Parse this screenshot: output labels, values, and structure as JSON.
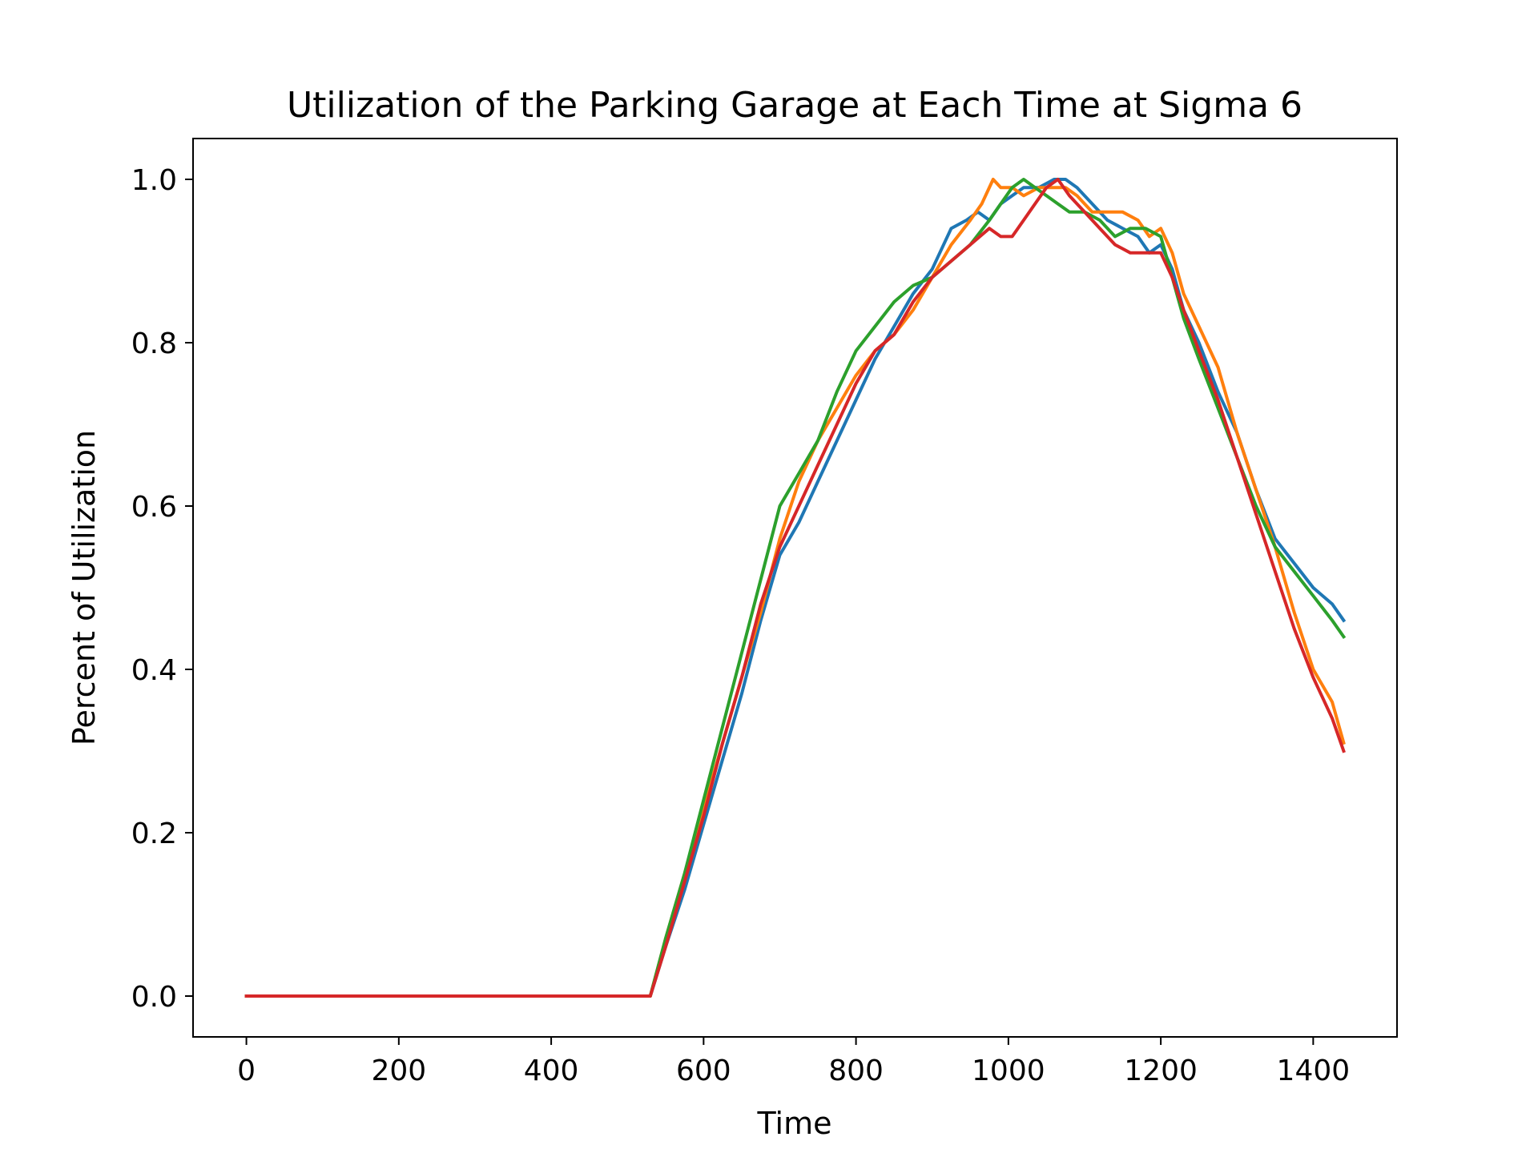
{
  "chart_data": {
    "type": "line",
    "title": "Utilization of the Parking Garage at Each Time at Sigma 6",
    "xlabel": "Time",
    "ylabel": "Percent of Utilization",
    "xlim": [
      -70,
      1510
    ],
    "ylim": [
      -0.05,
      1.05
    ],
    "xticks": [
      0,
      200,
      400,
      600,
      800,
      1000,
      1200,
      1400
    ],
    "xtick_labels": [
      "0",
      "200",
      "400",
      "600",
      "800",
      "1000",
      "1200",
      "1400"
    ],
    "yticks": [
      0.0,
      0.2,
      0.4,
      0.6,
      0.8,
      1.0
    ],
    "ytick_labels": [
      "0.0",
      "0.2",
      "0.4",
      "0.6",
      "0.8",
      "1.0"
    ],
    "grid": false,
    "legend": "none",
    "series": [
      {
        "color": "#1f77b4",
        "x": [
          0,
          530,
          550,
          575,
          600,
          625,
          650,
          675,
          700,
          725,
          750,
          775,
          800,
          825,
          850,
          875,
          900,
          925,
          945,
          960,
          975,
          990,
          1005,
          1020,
          1040,
          1060,
          1075,
          1090,
          1110,
          1130,
          1150,
          1170,
          1185,
          1200,
          1215,
          1230,
          1250,
          1275,
          1300,
          1325,
          1350,
          1375,
          1400,
          1425,
          1440
        ],
        "y": [
          0,
          0,
          0.06,
          0.13,
          0.21,
          0.29,
          0.37,
          0.46,
          0.54,
          0.58,
          0.63,
          0.68,
          0.73,
          0.78,
          0.82,
          0.86,
          0.89,
          0.94,
          0.95,
          0.96,
          0.95,
          0.97,
          0.98,
          0.99,
          0.99,
          1.0,
          1.0,
          0.99,
          0.97,
          0.95,
          0.94,
          0.93,
          0.91,
          0.92,
          0.89,
          0.84,
          0.8,
          0.74,
          0.69,
          0.62,
          0.56,
          0.53,
          0.5,
          0.48,
          0.46
        ]
      },
      {
        "color": "#ff7f0e",
        "x": [
          0,
          530,
          550,
          575,
          600,
          625,
          650,
          675,
          700,
          725,
          750,
          775,
          800,
          825,
          850,
          875,
          900,
          925,
          950,
          965,
          980,
          990,
          1005,
          1020,
          1040,
          1060,
          1075,
          1090,
          1110,
          1130,
          1150,
          1170,
          1185,
          1200,
          1215,
          1230,
          1250,
          1275,
          1300,
          1325,
          1350,
          1375,
          1400,
          1425,
          1440
        ],
        "y": [
          0,
          0,
          0.07,
          0.15,
          0.23,
          0.31,
          0.39,
          0.47,
          0.56,
          0.63,
          0.68,
          0.72,
          0.76,
          0.79,
          0.81,
          0.84,
          0.88,
          0.92,
          0.95,
          0.97,
          1.0,
          0.99,
          0.99,
          0.98,
          0.99,
          0.99,
          0.99,
          0.98,
          0.96,
          0.96,
          0.96,
          0.95,
          0.93,
          0.94,
          0.91,
          0.86,
          0.82,
          0.77,
          0.69,
          0.62,
          0.55,
          0.47,
          0.4,
          0.36,
          0.31
        ]
      },
      {
        "color": "#2ca02c",
        "x": [
          0,
          530,
          550,
          575,
          600,
          625,
          650,
          675,
          700,
          725,
          750,
          775,
          800,
          825,
          850,
          875,
          900,
          925,
          950,
          975,
          990,
          1005,
          1020,
          1035,
          1050,
          1065,
          1080,
          1100,
          1120,
          1140,
          1160,
          1180,
          1200,
          1215,
          1230,
          1250,
          1275,
          1300,
          1325,
          1350,
          1375,
          1400,
          1425,
          1440
        ],
        "y": [
          0,
          0,
          0.07,
          0.15,
          0.24,
          0.33,
          0.42,
          0.51,
          0.6,
          0.64,
          0.68,
          0.74,
          0.79,
          0.82,
          0.85,
          0.87,
          0.88,
          0.9,
          0.92,
          0.95,
          0.97,
          0.99,
          1.0,
          0.99,
          0.98,
          0.97,
          0.96,
          0.96,
          0.95,
          0.93,
          0.94,
          0.94,
          0.93,
          0.88,
          0.83,
          0.78,
          0.72,
          0.66,
          0.6,
          0.55,
          0.52,
          0.49,
          0.46,
          0.44
        ]
      },
      {
        "color": "#d62728",
        "x": [
          0,
          530,
          550,
          575,
          600,
          625,
          650,
          675,
          700,
          725,
          750,
          775,
          800,
          825,
          850,
          875,
          900,
          925,
          950,
          975,
          990,
          1005,
          1020,
          1035,
          1050,
          1065,
          1080,
          1100,
          1120,
          1140,
          1160,
          1180,
          1200,
          1215,
          1230,
          1250,
          1275,
          1300,
          1325,
          1350,
          1375,
          1400,
          1425,
          1440
        ],
        "y": [
          0,
          0,
          0.06,
          0.14,
          0.22,
          0.31,
          0.39,
          0.48,
          0.55,
          0.6,
          0.65,
          0.7,
          0.75,
          0.79,
          0.81,
          0.85,
          0.88,
          0.9,
          0.92,
          0.94,
          0.93,
          0.93,
          0.95,
          0.97,
          0.99,
          1.0,
          0.98,
          0.96,
          0.94,
          0.92,
          0.91,
          0.91,
          0.91,
          0.88,
          0.84,
          0.79,
          0.73,
          0.66,
          0.59,
          0.52,
          0.45,
          0.39,
          0.34,
          0.3
        ]
      }
    ]
  }
}
